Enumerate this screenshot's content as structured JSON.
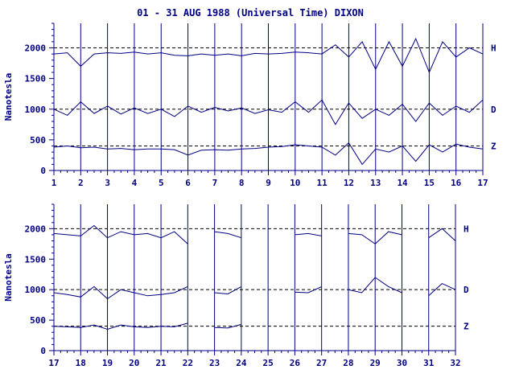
{
  "chart_data": {
    "type": "line",
    "title": "01 - 31 AUG 1988 (Universal Time) DIXON",
    "ylabel": "Nanotesla",
    "ylim": [
      0,
      2400
    ],
    "yticks": [
      0,
      500,
      1000,
      1500,
      2000
    ],
    "baselines": [
      2000,
      1000,
      400
    ],
    "series_names": [
      "H",
      "D",
      "Z"
    ],
    "line_color": "#000080",
    "grid": "vertical day lines, dashed horizontal baselines",
    "panels": [
      {
        "name": "top",
        "xlim": [
          1,
          17
        ],
        "xtick_labels": [
          "1",
          "2",
          "3",
          "4",
          "5",
          "6",
          "7",
          "8",
          "9",
          "10",
          "11",
          "12",
          "13",
          "14",
          "15",
          "16",
          "17"
        ],
        "series": [
          {
            "name": "H",
            "base": 2000,
            "x": [
              1,
              1.5,
              2,
              2.5,
              3,
              3.5,
              4,
              4.5,
              5,
              5.5,
              6,
              6.5,
              7,
              7.5,
              8,
              8.5,
              9,
              9.5,
              10,
              10.5,
              11,
              11.5,
              12,
              12.5,
              13,
              13.5,
              14,
              14.5,
              15,
              15.5,
              16,
              16.5,
              17
            ],
            "values": [
              1900,
              1920,
              1700,
              1900,
              1920,
              1910,
              1930,
              1900,
              1920,
              1880,
              1870,
              1900,
              1880,
              1900,
              1870,
              1910,
              1900,
              1910,
              1930,
              1920,
              1900,
              2050,
              1850,
              2100,
              1650,
              2100,
              1700,
              2150,
              1600,
              2100,
              1850,
              2000,
              1900
            ]
          },
          {
            "name": "D",
            "base": 1000,
            "x": [
              1,
              1.5,
              2,
              2.5,
              3,
              3.5,
              4,
              4.5,
              5,
              5.5,
              6,
              6.5,
              7,
              7.5,
              8,
              8.5,
              9,
              9.5,
              10,
              10.5,
              11,
              11.5,
              12,
              12.5,
              13,
              13.5,
              14,
              14.5,
              15,
              15.5,
              16,
              16.5,
              17
            ],
            "values": [
              1000,
              900,
              1120,
              930,
              1050,
              920,
              1020,
              930,
              1000,
              880,
              1050,
              950,
              1030,
              970,
              1020,
              930,
              990,
              950,
              1120,
              950,
              1150,
              750,
              1100,
              850,
              1000,
              900,
              1080,
              800,
              1100,
              900,
              1050,
              950,
              1150
            ]
          },
          {
            "name": "Z",
            "base": 400,
            "x": [
              1,
              1.5,
              2,
              2.5,
              3,
              3.5,
              4,
              4.5,
              5,
              5.5,
              6,
              6.5,
              7,
              7.5,
              8,
              8.5,
              9,
              9.5,
              10,
              10.5,
              11,
              11.5,
              12,
              12.5,
              13,
              13.5,
              14,
              14.5,
              15,
              15.5,
              16,
              16.5,
              17
            ],
            "values": [
              380,
              400,
              370,
              380,
              350,
              360,
              340,
              350,
              350,
              340,
              250,
              330,
              340,
              330,
              350,
              360,
              380,
              390,
              420,
              400,
              380,
              250,
              450,
              100,
              350,
              300,
              400,
              150,
              420,
              300,
              430,
              380,
              350
            ]
          }
        ]
      },
      {
        "name": "bottom",
        "xlim": [
          17,
          32
        ],
        "xtick_labels": [
          "17",
          "18",
          "19",
          "20",
          "21",
          "22",
          "23",
          "24",
          "25",
          "26",
          "27",
          "28",
          "29",
          "30",
          "31",
          "32"
        ],
        "series": [
          {
            "name": "H",
            "base": 2000,
            "x": [
              17,
              17.5,
              18,
              18.5,
              19,
              19.5,
              20,
              20.5,
              21,
              21.5,
              22,
              22.5,
              23,
              23.5,
              24,
              24.5,
              25,
              25.5,
              26,
              26.5,
              27,
              27.5,
              28,
              28.5,
              29,
              29.5,
              30,
              30.5,
              31,
              31.5,
              32
            ],
            "values": [
              1920,
              1900,
              1880,
              2050,
              1850,
              1950,
              1900,
              1920,
              1850,
              1950,
              1750,
              null,
              1950,
              1920,
              1850,
              null,
              null,
              null,
              1900,
              1920,
              1880,
              null,
              1920,
              1900,
              1750,
              1950,
              1900,
              null,
              1850,
              2000,
              1800
            ]
          },
          {
            "name": "D",
            "base": 1000,
            "x": [
              17,
              17.5,
              18,
              18.5,
              19,
              19.5,
              20,
              20.5,
              21,
              21.5,
              22,
              22.5,
              23,
              23.5,
              24,
              24.5,
              25,
              25.5,
              26,
              26.5,
              27,
              27.5,
              28,
              28.5,
              29,
              29.5,
              30,
              30.5,
              31,
              31.5,
              32
            ],
            "values": [
              950,
              920,
              880,
              1050,
              850,
              1000,
              950,
              900,
              920,
              950,
              1050,
              null,
              950,
              930,
              1050,
              null,
              null,
              null,
              960,
              950,
              1050,
              null,
              1000,
              950,
              1200,
              1050,
              950,
              null,
              900,
              1100,
              1000
            ]
          },
          {
            "name": "Z",
            "base": 400,
            "x": [
              17,
              17.5,
              18,
              18.5,
              19,
              19.5,
              20,
              20.5,
              21,
              21.5,
              22,
              22.5,
              23,
              23.5,
              24,
              24.5,
              25,
              25.5,
              26,
              26.5,
              27,
              27.5,
              28,
              28.5,
              29,
              29.5,
              30,
              30.5,
              31,
              31.5,
              32
            ],
            "values": [
              400,
              390,
              380,
              420,
              350,
              420,
              390,
              380,
              400,
              390,
              450,
              null,
              380,
              370,
              430,
              null,
              null,
              null,
              null,
              null,
              null,
              null,
              null,
              null,
              null,
              null,
              null,
              null,
              null,
              null,
              null
            ]
          }
        ]
      }
    ]
  }
}
